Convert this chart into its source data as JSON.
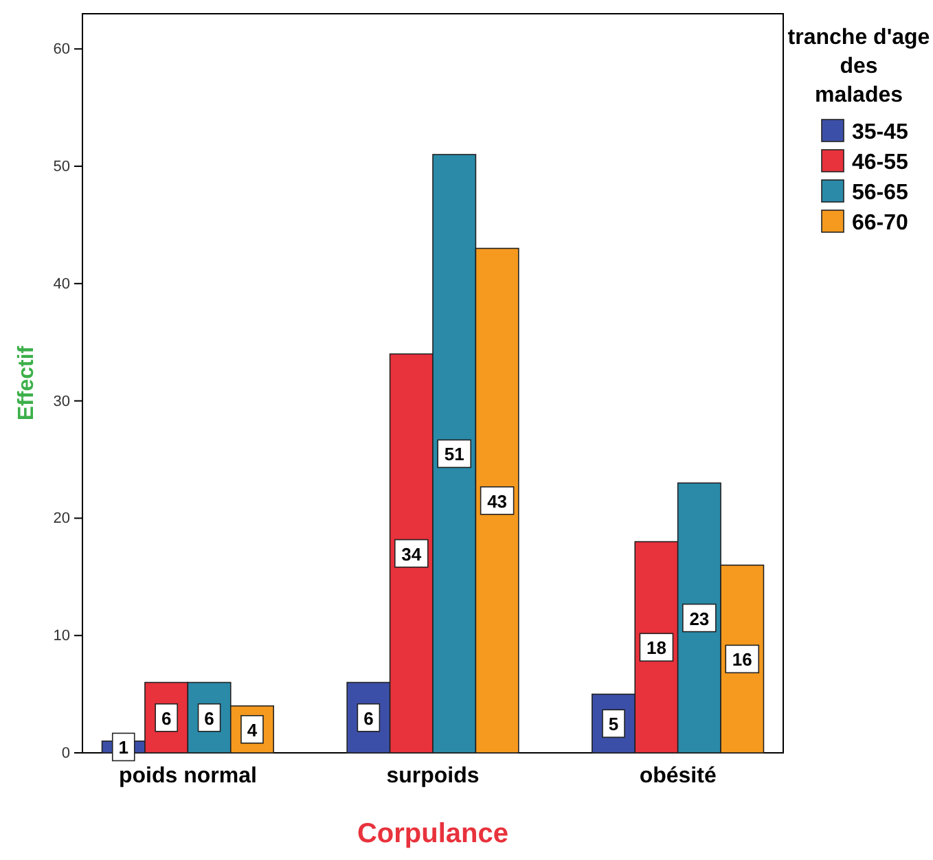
{
  "chart_data": {
    "type": "bar",
    "xlabel": "Corpulance",
    "ylabel": "Effectif",
    "legend_title": "tranche d'age des malades",
    "categories": [
      "poids normal",
      "surpoids",
      "obésité"
    ],
    "series": [
      {
        "name": "35-45",
        "color": "#3c4fa8",
        "values": [
          1,
          6,
          5
        ]
      },
      {
        "name": "46-55",
        "color": "#e8323c",
        "values": [
          6,
          34,
          18
        ]
      },
      {
        "name": "56-65",
        "color": "#2a8aa8",
        "values": [
          6,
          51,
          23
        ]
      },
      {
        "name": "66-70",
        "color": "#f59a1f",
        "values": [
          4,
          43,
          16
        ]
      }
    ],
    "ylim": [
      0,
      63
    ],
    "yticks": [
      0,
      10,
      20,
      30,
      40,
      50,
      60
    ],
    "grid": false,
    "legend": "right",
    "data_labels": true
  }
}
